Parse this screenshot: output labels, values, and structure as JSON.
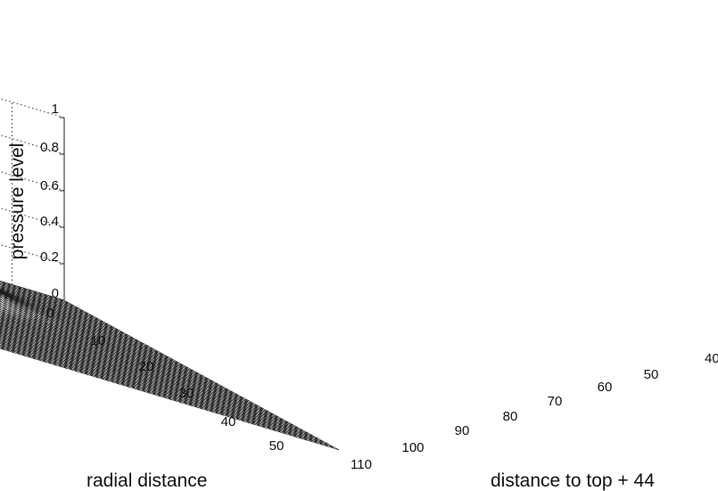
{
  "chart_data": {
    "type": "surface",
    "grid": true,
    "zlabel": "pressure level",
    "xlabel": "radial distance",
    "ylabel": "distance to top + 44",
    "zlim": [
      0,
      1
    ],
    "xlim": [
      0,
      55
    ],
    "ylim": [
      40,
      110
    ],
    "z_ticks": [
      "0",
      "0.2",
      "0.4",
      "0.6",
      "0.8",
      "1"
    ],
    "x_ticks": [
      "0",
      "10",
      "20",
      "30",
      "40",
      "50"
    ],
    "y_ticks": [
      "110",
      "100",
      "90",
      "80",
      "70",
      "60",
      "50",
      "40"
    ],
    "features": [
      {
        "x": 11,
        "y": 63,
        "z": 0.62
      },
      {
        "x": 4,
        "y": 61,
        "z": 0.66
      },
      {
        "x": 2,
        "y": 52,
        "z": 1.0
      }
    ]
  }
}
